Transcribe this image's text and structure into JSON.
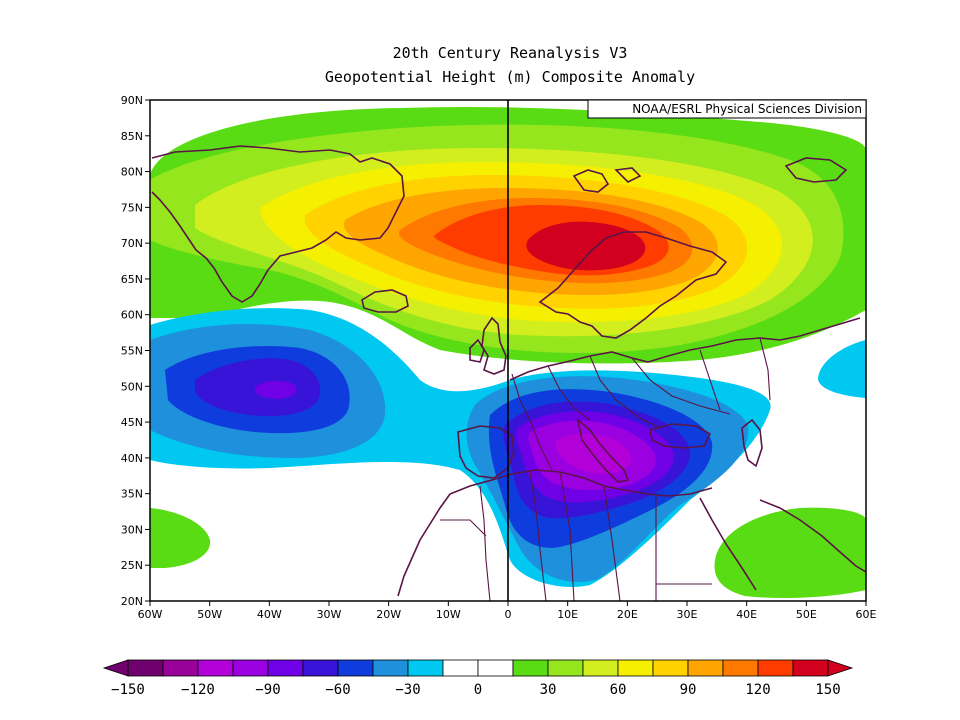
{
  "title": "20th Century Reanalysis V3",
  "subtitle": "Geopotential Height (m) Composite Anomaly",
  "credit": "NOAA/ESRL Physical Sciences Division",
  "map": {
    "lon_range": [
      -60,
      60
    ],
    "lat_range": [
      20,
      90
    ],
    "lon_ticks": [
      "60W",
      "50W",
      "40W",
      "30W",
      "20W",
      "10W",
      "0",
      "10E",
      "20E",
      "30E",
      "40E",
      "50E",
      "60E"
    ],
    "lat_ticks": [
      "90N",
      "85N",
      "80N",
      "75N",
      "70N",
      "65N",
      "60N",
      "55N",
      "50N",
      "45N",
      "40N",
      "35N",
      "30N",
      "25N",
      "20N"
    ],
    "anomaly_centers": [
      {
        "feature": "high",
        "lon": 10,
        "lat": 70,
        "value": 140
      },
      {
        "feature": "low",
        "lon": -39,
        "lat": 50,
        "value": -75
      },
      {
        "feature": "low",
        "lon": 15,
        "lat": 41,
        "value": -110
      },
      {
        "feature": "weak-high",
        "lon": -56,
        "lat": 28,
        "value": 20
      },
      {
        "feature": "weak-high",
        "lon": 45,
        "lat": 27,
        "value": 20
      },
      {
        "feature": "weak-low",
        "lon": 56,
        "lat": 52,
        "value": -20
      }
    ]
  },
  "colorbar": {
    "colors": [
      "#70006e",
      "#9a009a",
      "#b400d8",
      "#9b00e0",
      "#7000e6",
      "#3814d8",
      "#0f3cdc",
      "#1e90dc",
      "#00c8f0",
      "#ffffff",
      "#ffffff",
      "#5adc14",
      "#96e61e",
      "#d2ee1e",
      "#f5f000",
      "#ffd200",
      "#ffa500",
      "#ff7800",
      "#ff3c00",
      "#d2001e"
    ],
    "labels": [
      "−150",
      "−120",
      "−90",
      "−60",
      "−30",
      "0",
      "30",
      "60",
      "90",
      "120",
      "150"
    ]
  }
}
